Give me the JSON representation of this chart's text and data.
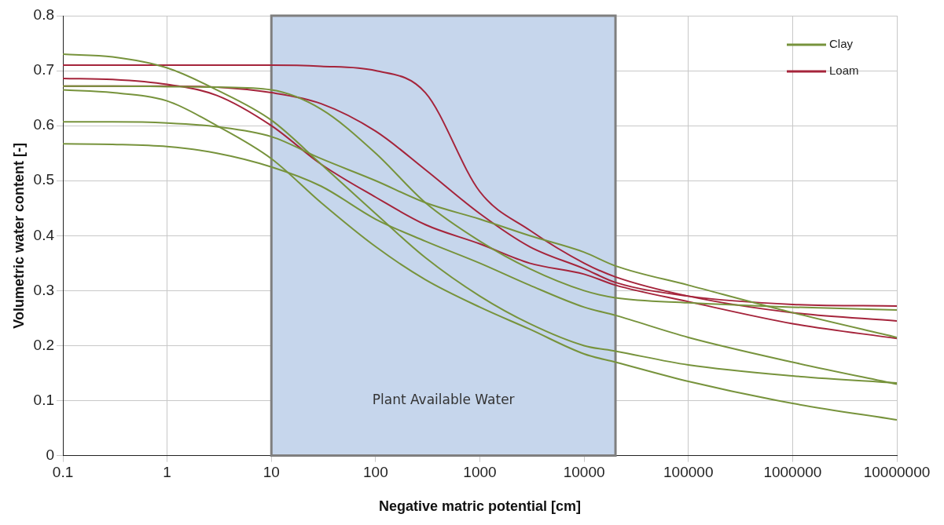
{
  "chart_data": {
    "type": "line",
    "xlabel": "Negative matric potential [cm]",
    "ylabel": "Volumetric water content [-]",
    "x": [
      0.1,
      0.3,
      1,
      3,
      10,
      30,
      100,
      300,
      1000,
      3000,
      10000,
      20000,
      100000,
      1000000,
      10000000
    ],
    "series": [
      {
        "name": "Clay",
        "color": "#77933c",
        "values": [
          0.73,
          0.725,
          0.705,
          0.665,
          0.61,
          0.53,
          0.44,
          0.36,
          0.29,
          0.24,
          0.2,
          0.19,
          0.165,
          0.145,
          0.132
        ]
      },
      {
        "color": "#77933c",
        "values": [
          0.672,
          0.672,
          0.671,
          0.67,
          0.665,
          0.63,
          0.55,
          0.46,
          0.39,
          0.34,
          0.3,
          0.287,
          0.278,
          0.27,
          0.265
        ]
      },
      {
        "color": "#77933c",
        "values": [
          0.665,
          0.66,
          0.645,
          0.6,
          0.54,
          0.46,
          0.38,
          0.32,
          0.27,
          0.23,
          0.185,
          0.17,
          0.135,
          0.095,
          0.065
        ]
      },
      {
        "color": "#77933c",
        "values": [
          0.607,
          0.607,
          0.605,
          0.598,
          0.58,
          0.54,
          0.5,
          0.46,
          0.43,
          0.4,
          0.37,
          0.345,
          0.31,
          0.26,
          0.215
        ]
      },
      {
        "color": "#77933c",
        "values": [
          0.567,
          0.566,
          0.562,
          0.55,
          0.525,
          0.49,
          0.43,
          0.39,
          0.35,
          0.31,
          0.27,
          0.255,
          0.215,
          0.17,
          0.13
        ]
      },
      {
        "name": "Loam",
        "color": "#a5243b",
        "values": [
          0.71,
          0.71,
          0.71,
          0.71,
          0.71,
          0.708,
          0.7,
          0.66,
          0.48,
          0.41,
          0.35,
          0.325,
          0.29,
          0.26,
          0.245
        ]
      },
      {
        "color": "#a5243b",
        "values": [
          0.672,
          0.672,
          0.672,
          0.67,
          0.66,
          0.64,
          0.59,
          0.52,
          0.44,
          0.38,
          0.34,
          0.315,
          0.29,
          0.275,
          0.272
        ]
      },
      {
        "color": "#a5243b",
        "values": [
          0.686,
          0.684,
          0.675,
          0.655,
          0.6,
          0.53,
          0.47,
          0.42,
          0.385,
          0.35,
          0.33,
          0.31,
          0.28,
          0.24,
          0.213
        ]
      }
    ],
    "log": "x",
    "xlim": [
      0.1,
      10000000
    ],
    "xticks": [
      0.1,
      1,
      10,
      100,
      1000,
      10000,
      100000,
      1000000,
      10000000
    ],
    "ylim": [
      0,
      0.8
    ],
    "yticks": [
      0,
      0.1,
      0.2,
      0.3,
      0.4,
      0.5,
      0.6,
      0.7,
      0.8
    ],
    "bands": [
      {
        "axis": "x",
        "from": 10,
        "to": 20000,
        "label": "Plant Available Water",
        "color": "#c6d6ec"
      }
    ],
    "grid": true,
    "legend": "top right",
    "marker": "none",
    "line_style": "solid"
  }
}
